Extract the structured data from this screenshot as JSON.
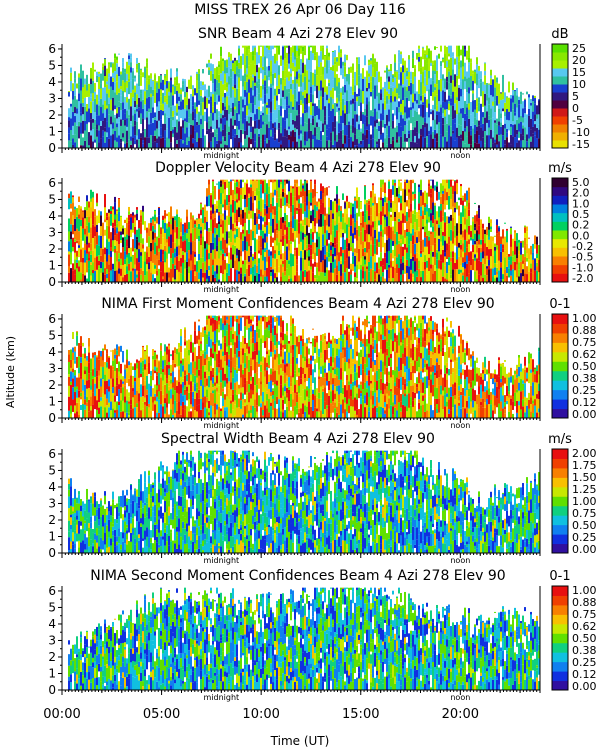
{
  "figure": {
    "title": "MISS TREX   26 Apr 06 Day 116",
    "xlabel": "Time (UT)",
    "ylabel": "Altitude (km)",
    "xticks": [
      "00:00",
      "05:00",
      "10:00",
      "15:00",
      "20:00"
    ],
    "marker_midnight": "midnight",
    "marker_noon": "noon"
  },
  "chart_data": [
    {
      "type": "heatmap",
      "title": "SNR Beam 4 Azi 278 Elev 90",
      "unit": "dB",
      "ylim": [
        0,
        6.3
      ],
      "yticks": [
        "0",
        "1",
        "2",
        "3",
        "4",
        "5",
        "6"
      ],
      "colorbar": [
        "-15",
        "-10",
        "-5",
        "0",
        "5",
        "10",
        "15",
        "20",
        "25"
      ],
      "colors": [
        "#58e000",
        "#88e800",
        "#a8f000",
        "#58c8f0",
        "#30c0a0",
        "#1840d0",
        "#301880",
        "#500040",
        "#d01818",
        "#f04000",
        "#f08000",
        "#f0b000",
        "#e8e000"
      ]
    },
    {
      "type": "heatmap",
      "title": "Doppler Velocity Beam 4 Azi 278 Elev 90",
      "unit": "m/s",
      "ylim": [
        0,
        6.3
      ],
      "yticks": [
        "0",
        "1",
        "2",
        "3",
        "4",
        "5",
        "6"
      ],
      "colorbar": [
        "-2.0",
        "-1.0",
        "-0.5",
        "-0.2",
        "0.0",
        "0.2",
        "0.5",
        "1.0",
        "2.0",
        "5.0"
      ],
      "colors": [
        "#e81010",
        "#f04000",
        "#f88000",
        "#f8c000",
        "#e8e800",
        "#80e800",
        "#00d060",
        "#00c0c0",
        "#0080e0",
        "#1020c0",
        "#300880",
        "#300030"
      ]
    },
    {
      "type": "heatmap",
      "title": "NIMA First Moment Confidences Beam 4 Azi 278 Elev 90",
      "unit": "0-1",
      "ylim": [
        0,
        6.3
      ],
      "yticks": [
        "0",
        "1",
        "2",
        "3",
        "4",
        "5",
        "6"
      ],
      "colorbar": [
        "0.00",
        "0.12",
        "0.25",
        "0.38",
        "0.50",
        "0.62",
        "0.75",
        "0.88",
        "1.00"
      ],
      "colors": [
        "#3010a0",
        "#1030e0",
        "#1080f0",
        "#10c0e0",
        "#10d080",
        "#60e000",
        "#c8e800",
        "#f8c000",
        "#f88000",
        "#f04000",
        "#e81010"
      ]
    },
    {
      "type": "heatmap",
      "title": "Spectral Width Beam 4 Azi 278 Elev 90",
      "unit": "m/s",
      "ylim": [
        0,
        6.3
      ],
      "yticks": [
        "0",
        "1",
        "2",
        "3",
        "4",
        "5",
        "6"
      ],
      "colorbar": [
        "0.00",
        "0.25",
        "0.50",
        "0.75",
        "1.00",
        "1.25",
        "1.50",
        "1.75",
        "2.00"
      ],
      "colors": [
        "#3010a0",
        "#1030e0",
        "#1080f0",
        "#10c0e0",
        "#10d080",
        "#60e000",
        "#c8e800",
        "#f8c000",
        "#f88000",
        "#f04000",
        "#e81010"
      ]
    },
    {
      "type": "heatmap",
      "title": "NIMA Second Moment Confidences Beam 4 Azi 278 Elev 90",
      "unit": "0-1",
      "ylim": [
        0,
        6.3
      ],
      "yticks": [
        "0",
        "1",
        "2",
        "3",
        "4",
        "5",
        "6"
      ],
      "colorbar": [
        "0.00",
        "0.12",
        "0.25",
        "0.38",
        "0.50",
        "0.62",
        "0.75",
        "0.88",
        "1.00"
      ],
      "colors": [
        "#3010a0",
        "#1030e0",
        "#1080f0",
        "#10c0e0",
        "#10d080",
        "#60e000",
        "#c8e800",
        "#f8c000",
        "#f88000",
        "#f04000",
        "#e81010"
      ]
    }
  ]
}
